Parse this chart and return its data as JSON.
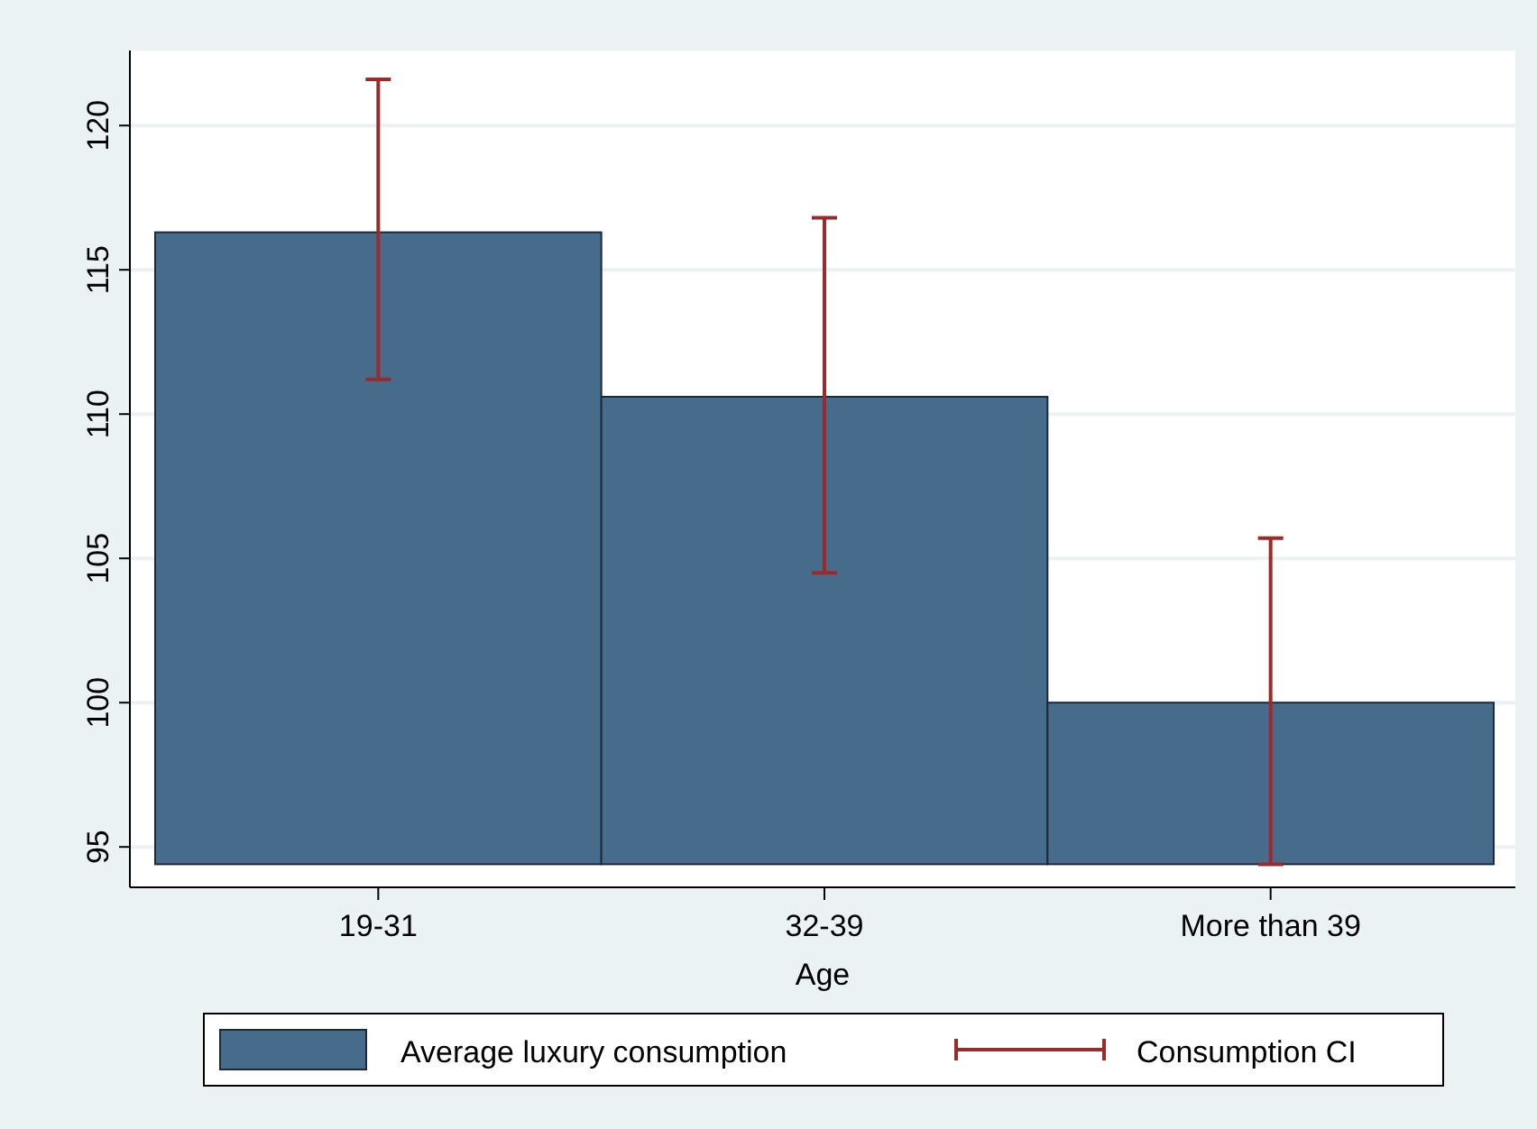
{
  "chart_data": {
    "type": "bar",
    "xlabel": "Age",
    "categories": [
      "19-31",
      "32-39",
      "More than 39"
    ],
    "series": [
      {
        "name": "Average luxury consumption",
        "color": "#476b8a",
        "values": [
          21.9,
          16.2,
          5.6
        ],
        "base": [
          94.4,
          94.4,
          94.4
        ],
        "errors": [
          [
            111.2,
            121.6
          ],
          [
            104.5,
            116.8
          ],
          [
            94.4,
            105.7
          ]
        ]
      }
    ],
    "annotations": [
      "Consumption CI"
    ],
    "ylim": [
      93.6,
      122.6
    ],
    "yticks": [
      95,
      100,
      105,
      110,
      115,
      120
    ],
    "grid": "y",
    "legend": "bottom"
  }
}
